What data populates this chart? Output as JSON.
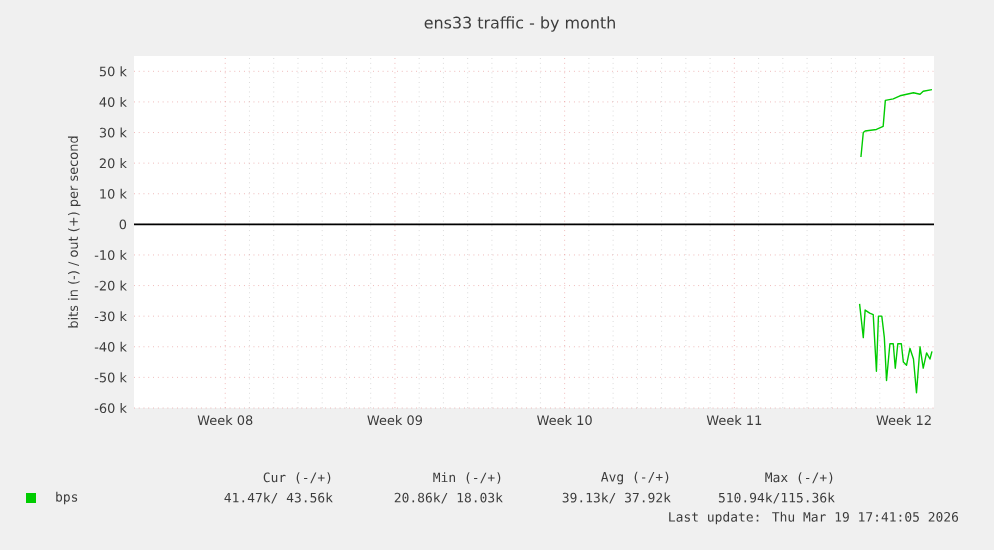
{
  "chart_data": {
    "type": "line",
    "title": "ens33 traffic - by month",
    "ylabel": "bits in (-) / out (+) per second",
    "xlim": [
      "2026-02-14T17:41",
      "2026-03-19T17:41"
    ],
    "xticks": [
      {
        "value": "2026-02-18T12:00",
        "label": "Week 08"
      },
      {
        "value": "2026-02-25T12:00",
        "label": "Week 09"
      },
      {
        "value": "2026-03-04T12:00",
        "label": "Week 10"
      },
      {
        "value": "2026-03-11T12:00",
        "label": "Week 11"
      },
      {
        "value": "2026-03-18T12:00",
        "label": "Week 12"
      }
    ],
    "ylim": [
      -60000,
      55000
    ],
    "yticks": [
      {
        "value": -60000,
        "label": "-60 k"
      },
      {
        "value": -50000,
        "label": "-50 k"
      },
      {
        "value": -40000,
        "label": "-40 k"
      },
      {
        "value": -30000,
        "label": "-30 k"
      },
      {
        "value": -20000,
        "label": "-20 k"
      },
      {
        "value": -10000,
        "label": "-10 k"
      },
      0,
      {
        "value": 10000,
        "label": "10 k"
      },
      {
        "value": 20000,
        "label": "20 k"
      },
      {
        "value": 30000,
        "label": "30 k"
      },
      {
        "value": 40000,
        "label": "40 k"
      },
      {
        "value": 50000,
        "label": "50 k"
      }
    ],
    "grid": true,
    "legend": "bottom left",
    "ref_lines": [
      {
        "axis": "y",
        "value": 0,
        "color": "#000000"
      }
    ],
    "series": [
      {
        "name": "bps",
        "color": "#00cc00",
        "x": [
          "2026-03-16T17:20",
          "2026-03-16T19:40",
          "2026-03-16T21:30",
          "2026-03-17T08:40",
          "2026-03-17T12:00",
          "2026-03-17T15:20",
          "2026-03-17T17:30",
          "2026-03-18T01:20",
          "2026-03-18T08:00",
          "2026-03-18T21:20",
          "2026-03-19T03:50",
          "2026-03-19T07:00",
          "2026-03-19T15:40"
        ],
        "values": [
          22000,
          30000,
          30500,
          31000,
          31500,
          32000,
          40500,
          41000,
          42000,
          43000,
          42500,
          43500,
          44000
        ]
      },
      {
        "color": "#00cc00",
        "x": [
          "2026-03-16T16:00",
          "2026-03-16T19:40",
          "2026-03-16T21:30",
          "2026-03-17T02:00",
          "2026-03-17T05:30",
          "2026-03-17T08:40",
          "2026-03-17T10:40",
          "2026-03-17T14:00",
          "2026-03-17T16:30",
          "2026-03-17T18:40",
          "2026-03-17T22:00",
          "2026-03-18T01:20",
          "2026-03-18T03:20",
          "2026-03-18T05:50",
          "2026-03-18T09:20",
          "2026-03-18T11:20",
          "2026-03-18T14:30",
          "2026-03-18T17:50",
          "2026-03-18T21:20",
          "2026-03-19T00:20",
          "2026-03-19T03:50",
          "2026-03-19T07:00",
          "2026-03-19T10:20",
          "2026-03-19T13:40",
          "2026-03-19T15:40"
        ],
        "values": [
          -26000,
          -37000,
          -28000,
          -29000,
          -29500,
          -48000,
          -30000,
          -30000,
          -37000,
          -51000,
          -39000,
          -39000,
          -47000,
          -39000,
          -39000,
          -45000,
          -46000,
          -40500,
          -44000,
          -55000,
          -40000,
          -47000,
          -42000,
          -44000,
          -41500
        ]
      }
    ],
    "annotations": [
      "Cur (-/+)",
      "Min (-/+)",
      "Avg (-/+)",
      "Max (-/+)",
      "41.47k/ 43.56k",
      "20.86k/ 18.03k",
      "39.13k/ 37.92k",
      "510.94k/115.36k",
      "Last update: Thu Mar 19 17:41:05 2026"
    ]
  }
}
